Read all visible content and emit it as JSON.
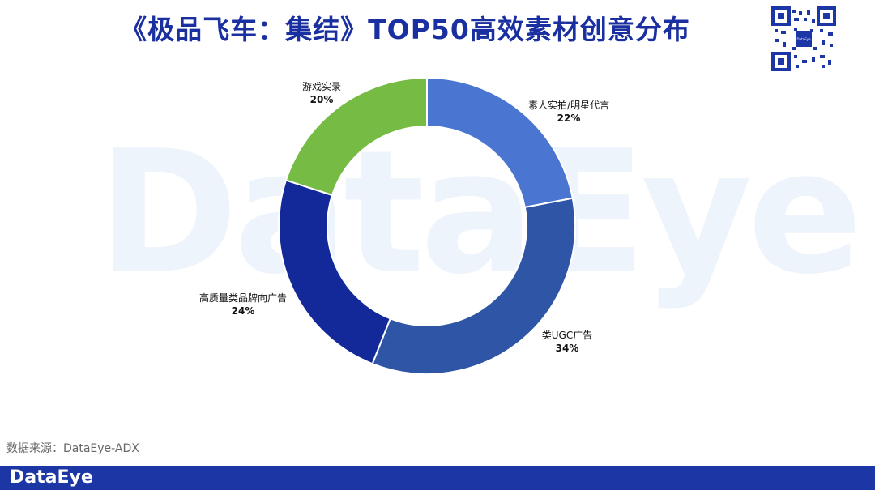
{
  "title": "《极品飞车：集结》TOP50高效素材创意分布",
  "watermark_text": "DataEye",
  "source": "数据来源：DataEye-ADX",
  "footer_brand": "DataEye",
  "chart_data": {
    "type": "pie",
    "variant": "donut",
    "slices": [
      {
        "label": "素人实拍/明星代言",
        "value": 22,
        "value_label": "22%",
        "color": "#4a76d2"
      },
      {
        "label": "类UGC广告",
        "value": 34,
        "value_label": "34%",
        "color": "#2f55a6"
      },
      {
        "label": "高质量类品牌向广告",
        "value": 24,
        "value_label": "24%",
        "color": "#13299a"
      },
      {
        "label": "游戏实录",
        "value": 20,
        "value_label": "20%",
        "color": "#76bb43"
      }
    ]
  }
}
